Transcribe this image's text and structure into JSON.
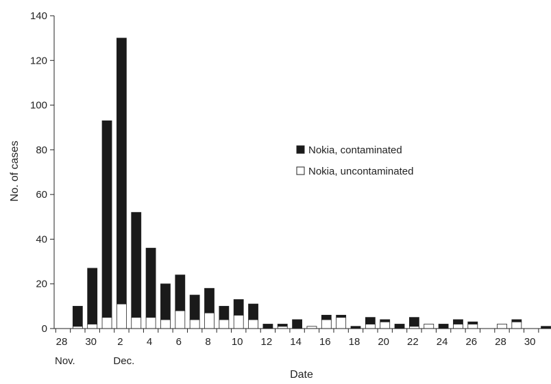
{
  "chart_data": {
    "type": "bar",
    "stacked": true,
    "ylabel": "No. of cases",
    "xlabel": "Date",
    "ylim": [
      0,
      140
    ],
    "yticks": [
      0,
      20,
      40,
      60,
      80,
      100,
      120,
      140
    ],
    "x_tick_labels": [
      "28",
      "30",
      "2",
      "4",
      "6",
      "8",
      "10",
      "12",
      "14",
      "16",
      "18",
      "20",
      "22",
      "24",
      "26",
      "28",
      "30"
    ],
    "month_labels": [
      {
        "label": "Nov.",
        "at_category": "Nov 28"
      },
      {
        "label": "Dec.",
        "at_category": "Dec 2"
      }
    ],
    "categories": [
      "Nov 28",
      "Nov 29",
      "Nov 30",
      "Dec 1",
      "Dec 2",
      "Dec 3",
      "Dec 4",
      "Dec 5",
      "Dec 6",
      "Dec 7",
      "Dec 8",
      "Dec 9",
      "Dec 10",
      "Dec 11",
      "Dec 12",
      "Dec 13",
      "Dec 14",
      "Dec 15",
      "Dec 16",
      "Dec 17",
      "Dec 18",
      "Dec 19",
      "Dec 20",
      "Dec 21",
      "Dec 22",
      "Dec 23",
      "Dec 24",
      "Dec 25",
      "Dec 26",
      "Dec 27",
      "Dec 28",
      "Dec 29",
      "Dec 30",
      "Dec 31"
    ],
    "series": [
      {
        "name": "Nokia, uncontaminated",
        "color": "#ffffff",
        "values": [
          0,
          1,
          2,
          5,
          11,
          5,
          5,
          4,
          8,
          4,
          7,
          4,
          6,
          4,
          0,
          1,
          0,
          1,
          4,
          5,
          0,
          2,
          3,
          0,
          1,
          2,
          0,
          2,
          2,
          0,
          2,
          3,
          0,
          0
        ]
      },
      {
        "name": "Nokia, contaminated",
        "color": "#1a1a1a",
        "values": [
          0,
          9,
          25,
          88,
          119,
          47,
          31,
          16,
          16,
          11,
          11,
          6,
          7,
          7,
          2,
          1,
          4,
          0,
          2,
          1,
          1,
          3,
          1,
          2,
          4,
          0,
          2,
          2,
          1,
          0,
          0,
          1,
          0,
          1
        ]
      }
    ],
    "legend_position": "center-right",
    "grid": false
  }
}
